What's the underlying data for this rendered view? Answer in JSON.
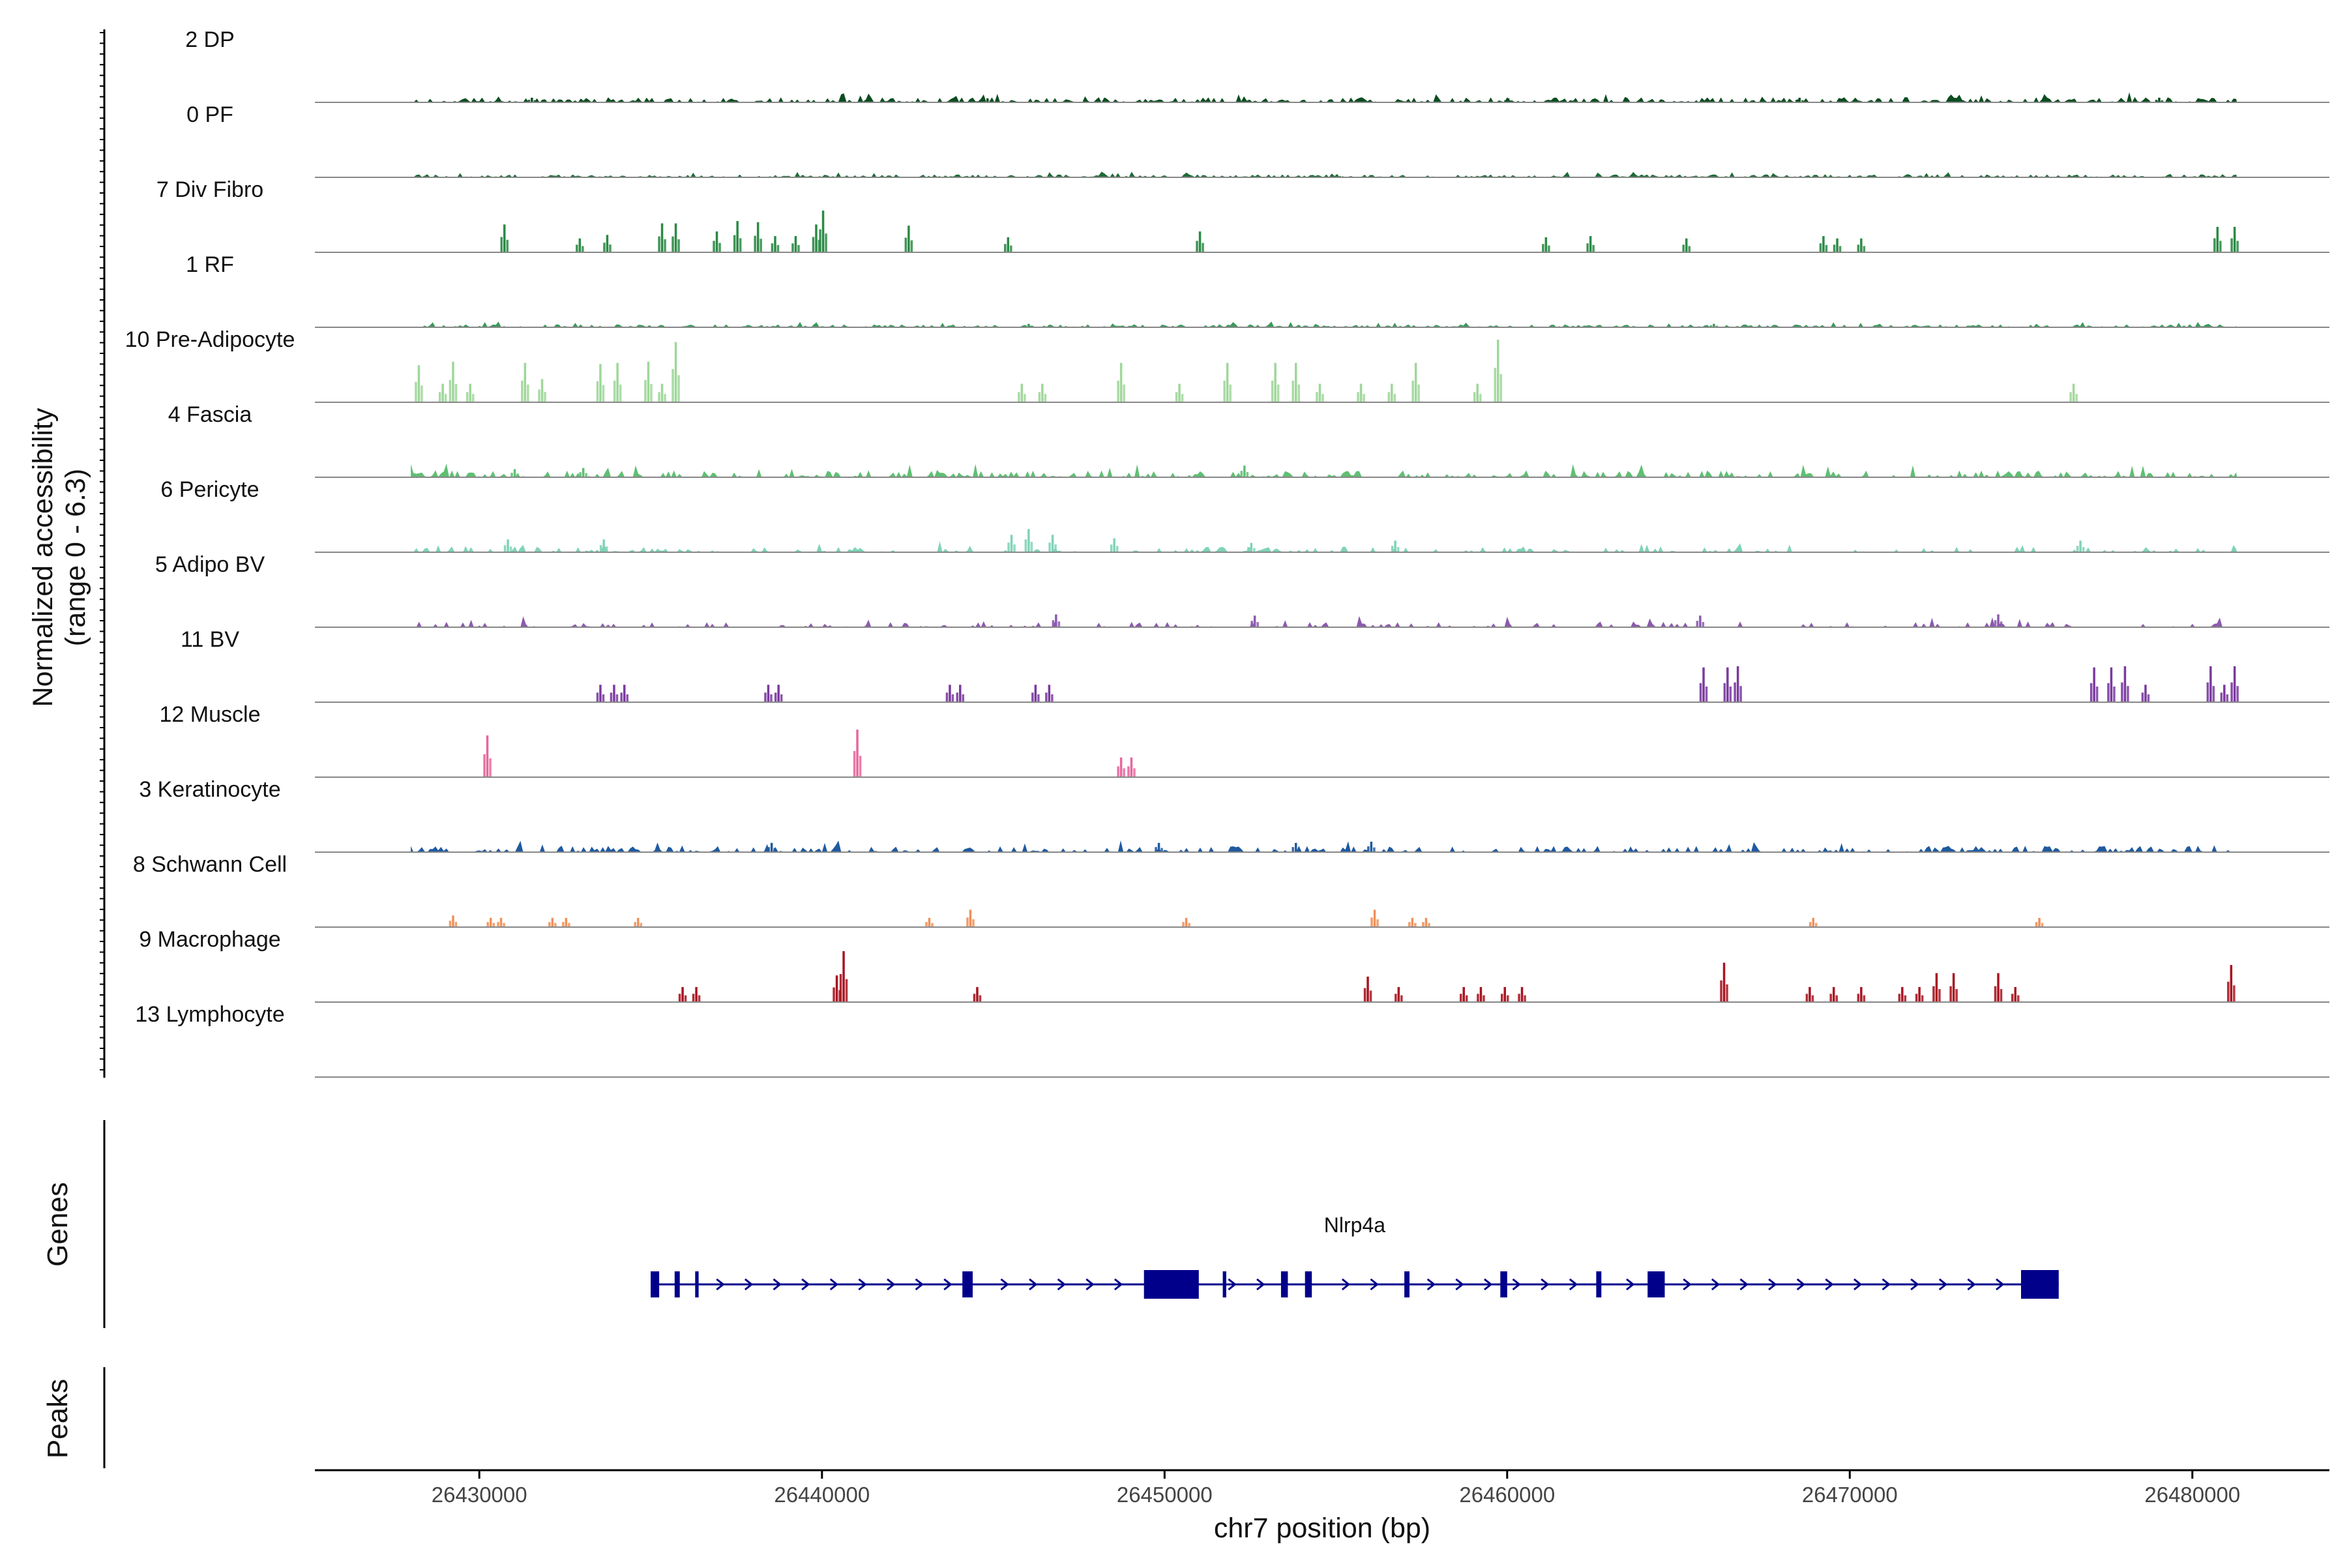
{
  "chart_data": {
    "type": "area",
    "title": "",
    "xlabel": "chr7 position (bp)",
    "ylabel_line1": "Normalized accessibility",
    "ylabel_line2": "(range 0 - 6.3)",
    "ylim": [
      0,
      6.3
    ],
    "xlim": [
      26425200,
      26484000
    ],
    "xticks": [
      {
        "value": 26430000,
        "label": "26430000"
      },
      {
        "value": 26440000,
        "label": "26440000"
      },
      {
        "value": 26450000,
        "label": "26450000"
      },
      {
        "value": 26460000,
        "label": "26460000"
      },
      {
        "value": 26470000,
        "label": "26470000"
      },
      {
        "value": 26480000,
        "label": "26480000"
      }
    ],
    "series": [
      {
        "name": "2 DP",
        "color": "#0b4d20",
        "mode": "noise",
        "amp": 0.45,
        "density": 0.7,
        "peaks": [
          [
            26431500,
            0.4
          ],
          [
            26444800,
            0.35
          ],
          [
            26460000,
            0.35
          ],
          [
            26468500,
            0.4
          ],
          [
            26479000,
            0.4
          ]
        ]
      },
      {
        "name": "0 PF",
        "color": "#1e6b38",
        "mode": "noise",
        "amp": 0.25,
        "density": 0.85,
        "peaks": [
          [
            26455000,
            0.25
          ]
        ]
      },
      {
        "name": "7 Div Fibro",
        "color": "#2b8a45",
        "mode": "peaks",
        "peaks": [
          [
            26430700,
            2.4
          ],
          [
            26432900,
            1.2
          ],
          [
            26433700,
            1.5
          ],
          [
            26435300,
            2.5
          ],
          [
            26435700,
            2.5
          ],
          [
            26436900,
            1.8
          ],
          [
            26437500,
            2.7
          ],
          [
            26438100,
            2.6
          ],
          [
            26438600,
            1.4
          ],
          [
            26439200,
            1.4
          ],
          [
            26439800,
            2.4
          ],
          [
            26440000,
            3.6
          ],
          [
            26442500,
            2.3
          ],
          [
            26445400,
            1.3
          ],
          [
            26451000,
            1.8
          ],
          [
            26461100,
            1.3
          ],
          [
            26462400,
            1.4
          ],
          [
            26465200,
            1.2
          ],
          [
            26469200,
            1.4
          ],
          [
            26469600,
            1.2
          ],
          [
            26470300,
            1.2
          ],
          [
            26480700,
            2.2
          ],
          [
            26481200,
            2.2
          ]
        ]
      },
      {
        "name": "1 RF",
        "color": "#3a9a5a",
        "mode": "noise",
        "amp": 0.25,
        "density": 0.75,
        "peaks": [
          [
            26446000,
            0.3
          ],
          [
            26466000,
            0.3
          ]
        ]
      },
      {
        "name": "10 Pre-Adipocyte",
        "color": "#9fd79a",
        "mode": "peaks",
        "peaks": [
          [
            26428200,
            3.2
          ],
          [
            26428900,
            1.6
          ],
          [
            26429200,
            3.5
          ],
          [
            26429700,
            1.6
          ],
          [
            26431300,
            3.4
          ],
          [
            26431800,
            2.0
          ],
          [
            26433500,
            3.3
          ],
          [
            26434000,
            3.4
          ],
          [
            26434900,
            3.5
          ],
          [
            26435700,
            5.2
          ],
          [
            26435300,
            1.6
          ],
          [
            26445800,
            1.6
          ],
          [
            26446400,
            1.6
          ],
          [
            26448700,
            3.4
          ],
          [
            26450400,
            1.6
          ],
          [
            26451800,
            3.4
          ],
          [
            26453200,
            3.4
          ],
          [
            26453800,
            3.4
          ],
          [
            26454500,
            1.6
          ],
          [
            26455700,
            1.6
          ],
          [
            26456600,
            1.6
          ],
          [
            26457300,
            3.4
          ],
          [
            26459100,
            1.6
          ],
          [
            26459700,
            5.4
          ],
          [
            26476500,
            1.6
          ]
        ]
      },
      {
        "name": "4 Fascia",
        "color": "#5fbf73",
        "mode": "noise",
        "amp": 0.6,
        "density": 0.55,
        "peaks": [
          [
            26452300,
            1.0
          ],
          [
            26431000,
            0.7
          ],
          [
            26433000,
            0.8
          ]
        ]
      },
      {
        "name": "6 Pericyte",
        "color": "#7fd3b8",
        "mode": "noise",
        "amp": 0.5,
        "density": 0.35,
        "peaks": [
          [
            26446000,
            2.0
          ],
          [
            26445500,
            1.5
          ],
          [
            26446700,
            1.5
          ],
          [
            26448500,
            1.2
          ],
          [
            26430800,
            1.1
          ],
          [
            26433600,
            1.1
          ],
          [
            26452500,
            0.8
          ],
          [
            26456700,
            1.0
          ],
          [
            26476700,
            1.0
          ]
        ]
      },
      {
        "name": "5 Adipo BV",
        "color": "#8b5aad",
        "mode": "noise",
        "amp": 0.5,
        "density": 0.3,
        "peaks": [
          [
            26446800,
            1.1
          ],
          [
            26452600,
            1.0
          ],
          [
            26465600,
            1.0
          ],
          [
            26474300,
            1.1
          ]
        ]
      },
      {
        "name": "11 BV",
        "color": "#7a3a9e",
        "mode": "peaks",
        "peaks": [
          [
            26433500,
            1.5
          ],
          [
            26433900,
            1.5
          ],
          [
            26434200,
            1.5
          ],
          [
            26438400,
            1.5
          ],
          [
            26438700,
            1.5
          ],
          [
            26443700,
            1.5
          ],
          [
            26444000,
            1.5
          ],
          [
            26446200,
            1.5
          ],
          [
            26446600,
            1.5
          ],
          [
            26465700,
            3.0
          ],
          [
            26466400,
            3.0
          ],
          [
            26466700,
            3.1
          ],
          [
            26477100,
            3.0
          ],
          [
            26477600,
            3.0
          ],
          [
            26478000,
            3.1
          ],
          [
            26478600,
            1.5
          ],
          [
            26480500,
            3.1
          ],
          [
            26480900,
            1.5
          ],
          [
            26481200,
            3.1
          ]
        ]
      },
      {
        "name": "12 Muscle",
        "color": "#e8679c",
        "mode": "peaks",
        "peaks": [
          [
            26430200,
            3.6
          ],
          [
            26441000,
            4.1
          ],
          [
            26448700,
            1.7
          ],
          [
            26449000,
            1.7
          ]
        ]
      },
      {
        "name": "3 Keratinocyte",
        "color": "#1f5aa0",
        "mode": "noise",
        "amp": 0.55,
        "density": 0.5,
        "peaks": [
          [
            26438500,
            0.8
          ],
          [
            26453800,
            0.8
          ],
          [
            26456000,
            0.9
          ],
          [
            26449800,
            0.8
          ]
        ]
      },
      {
        "name": "8 Schwann Cell",
        "color": "#f0915a",
        "mode": "peaks",
        "peaks": [
          [
            26429200,
            1.0
          ],
          [
            26430300,
            0.8
          ],
          [
            26430600,
            0.8
          ],
          [
            26432100,
            0.8
          ],
          [
            26432500,
            0.8
          ],
          [
            26434600,
            0.8
          ],
          [
            26443100,
            0.8
          ],
          [
            26444300,
            1.5
          ],
          [
            26450600,
            0.8
          ],
          [
            26456100,
            1.5
          ],
          [
            26457200,
            0.8
          ],
          [
            26457600,
            0.8
          ],
          [
            26468900,
            0.8
          ],
          [
            26475500,
            0.8
          ]
        ]
      },
      {
        "name": "9 Macrophage",
        "color": "#a81420",
        "mode": "peaks",
        "peaks": [
          [
            26435900,
            1.3
          ],
          [
            26436300,
            1.3
          ],
          [
            26440400,
            2.3
          ],
          [
            26440600,
            4.4
          ],
          [
            26444500,
            1.3
          ],
          [
            26455900,
            2.2
          ],
          [
            26456800,
            1.3
          ],
          [
            26458700,
            1.3
          ],
          [
            26459200,
            1.3
          ],
          [
            26459900,
            1.3
          ],
          [
            26460400,
            1.3
          ],
          [
            26466300,
            3.4
          ],
          [
            26468800,
            1.3
          ],
          [
            26469500,
            1.3
          ],
          [
            26470300,
            1.3
          ],
          [
            26471500,
            1.3
          ],
          [
            26472000,
            1.3
          ],
          [
            26472500,
            2.5
          ],
          [
            26473000,
            2.5
          ],
          [
            26474300,
            2.5
          ],
          [
            26474800,
            1.3
          ],
          [
            26481100,
            3.2
          ]
        ]
      },
      {
        "name": "13 Lymphocyte",
        "color": "#555555",
        "mode": "empty",
        "peaks": []
      }
    ],
    "genes_panel": {
      "title": "Genes",
      "gene_name": "Nlrp4a",
      "strand": "+",
      "start": 26435000,
      "end": 26476100,
      "color": "#00008b",
      "exons": [
        [
          26435000,
          26435250
        ],
        [
          26435700,
          26435850
        ],
        [
          26436300,
          26436400
        ],
        [
          26444100,
          26444400
        ],
        [
          26449400,
          26451000
        ],
        [
          26451700,
          26451800
        ],
        [
          26453400,
          26453600
        ],
        [
          26454100,
          26454300
        ],
        [
          26457000,
          26457150
        ],
        [
          26459800,
          26460000
        ],
        [
          26462600,
          26462750
        ],
        [
          26464100,
          26464600
        ],
        [
          26475000,
          26476100
        ]
      ]
    },
    "peaks_panel": {
      "title": "Peaks",
      "regions": []
    }
  }
}
